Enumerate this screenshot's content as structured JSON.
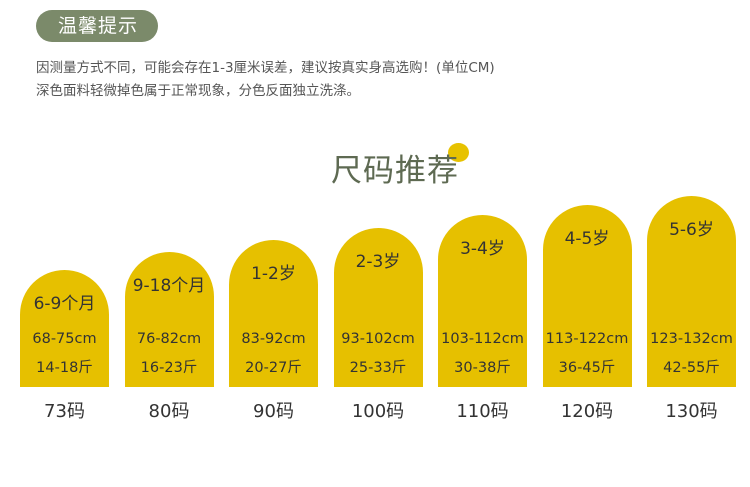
{
  "header": {
    "badge": "温馨提示",
    "notes": [
      "因测量方式不同，可能会存在1-3厘米误差，建议按真实身高选购！(单位CM)",
      "深色面料轻微掉色属于正常现象，分色反面独立洗涤。"
    ]
  },
  "title": "尺码推荐",
  "sizes": [
    {
      "age": "6-9个月",
      "height": "68-75cm",
      "weight": "14-18斤",
      "size": "73码"
    },
    {
      "age": "9-18个月",
      "height": "76-82cm",
      "weight": "16-23斤",
      "size": "80码"
    },
    {
      "age": "1-2岁",
      "height": "83-92cm",
      "weight": "20-27斤",
      "size": "90码"
    },
    {
      "age": "2-3岁",
      "height": "93-102cm",
      "weight": "25-33斤",
      "size": "100码"
    },
    {
      "age": "3-4岁",
      "height": "103-112cm",
      "weight": "30-38斤",
      "size": "110码"
    },
    {
      "age": "4-5岁",
      "height": "113-122cm",
      "weight": "36-45斤",
      "size": "120码"
    },
    {
      "age": "5-6岁",
      "height": "123-132cm",
      "weight": "42-55斤",
      "size": "130码"
    }
  ]
}
